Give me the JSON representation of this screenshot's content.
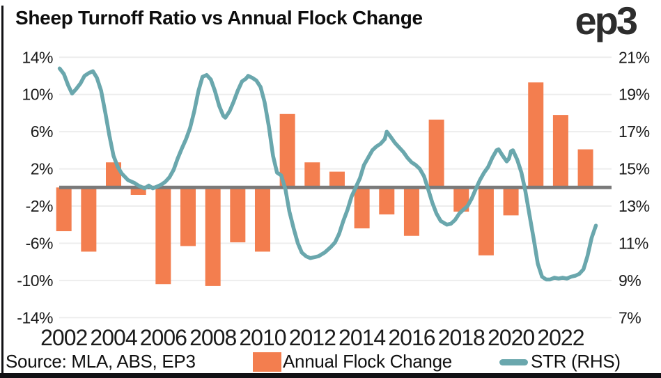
{
  "header": {
    "title": "Sheep Turnoff Ratio vs Annual Flock Change",
    "logo_text": "ep3"
  },
  "source_note": "Source: MLA, ABS, EP3",
  "legend": {
    "items": [
      {
        "label": "Annual Flock Change",
        "marker": "bar-swatch",
        "color": "#F37E4F"
      },
      {
        "label": "STR (RHS)",
        "marker": "line-swatch",
        "color": "#6AA7AD"
      }
    ]
  },
  "colors": {
    "bar": "#F37E4F",
    "line": "#6AA7AD",
    "zero_line": "#7A7A7A",
    "gridline": "#EDEDED",
    "axis_text": "#1B1B1B",
    "background": "#FFFFFF",
    "bottom_bar": "#111114"
  },
  "chart_data": {
    "type": "combo",
    "title": "Sheep Turnoff Ratio vs Annual Flock Change",
    "grid": true,
    "legend_position": "bottom",
    "baseline_left_value": 0,
    "x_axis": {
      "tick_labels": [
        "2002",
        "2004",
        "2006",
        "2008",
        "2010",
        "2012",
        "2014",
        "2016",
        "2018",
        "2020",
        "2022"
      ],
      "tick_years": [
        2002,
        2004,
        2006,
        2008,
        2010,
        2012,
        2014,
        2016,
        2018,
        2020,
        2022
      ],
      "range": [
        2001.7,
        2023.7
      ]
    },
    "left_axis": {
      "tick_labels": [
        "14%",
        "10%",
        "6%",
        "2%",
        "-2%",
        "-6%",
        "-10%",
        "-14%"
      ],
      "tick_values": [
        14,
        10,
        6,
        2,
        -2,
        -6,
        -10,
        -14
      ],
      "range": [
        -14,
        14
      ]
    },
    "right_axis": {
      "tick_labels": [
        "21%",
        "19%",
        "17%",
        "15%",
        "13%",
        "11%",
        "9%",
        "7%"
      ],
      "tick_values": [
        21,
        19,
        17,
        15,
        13,
        11,
        9,
        7
      ],
      "range": [
        7,
        21
      ]
    },
    "series": [
      {
        "name": "Annual Flock Change",
        "type": "bar",
        "axis": "left",
        "color": "#F37E4F",
        "years": [
          2002,
          2003,
          2004,
          2005,
          2006,
          2007,
          2008,
          2009,
          2010,
          2011,
          2012,
          2013,
          2014,
          2015,
          2016,
          2017,
          2018,
          2019,
          2020,
          2021,
          2022,
          2023
        ],
        "values": [
          -4.7,
          -6.9,
          2.7,
          -0.8,
          -10.4,
          -6.3,
          -10.6,
          -5.9,
          -6.9,
          7.9,
          2.7,
          1.7,
          -4.4,
          -2.9,
          -5.2,
          7.3,
          -2.6,
          -7.3,
          -3.0,
          11.3,
          7.8,
          4.1
        ]
      },
      {
        "name": "STR (RHS)",
        "type": "line",
        "axis": "right",
        "color": "#6AA7AD",
        "points": [
          [
            2001.83,
            20.4
          ],
          [
            2002.0,
            20.1
          ],
          [
            2002.17,
            19.5
          ],
          [
            2002.33,
            19.05
          ],
          [
            2002.5,
            19.3
          ],
          [
            2002.67,
            19.6
          ],
          [
            2002.83,
            20.0
          ],
          [
            2003.0,
            20.15
          ],
          [
            2003.17,
            20.25
          ],
          [
            2003.33,
            19.9
          ],
          [
            2003.5,
            19.2
          ],
          [
            2003.67,
            18.0
          ],
          [
            2003.83,
            16.8
          ],
          [
            2004.0,
            15.7
          ],
          [
            2004.17,
            15.1
          ],
          [
            2004.33,
            14.75
          ],
          [
            2004.58,
            14.4
          ],
          [
            2004.83,
            14.25
          ],
          [
            2005.0,
            14.1
          ],
          [
            2005.25,
            13.95
          ],
          [
            2005.42,
            14.1
          ],
          [
            2005.58,
            13.95
          ],
          [
            2005.75,
            14.05
          ],
          [
            2005.92,
            14.15
          ],
          [
            2006.08,
            14.3
          ],
          [
            2006.25,
            14.55
          ],
          [
            2006.42,
            14.95
          ],
          [
            2006.58,
            15.55
          ],
          [
            2006.75,
            16.1
          ],
          [
            2006.92,
            16.6
          ],
          [
            2007.08,
            17.2
          ],
          [
            2007.25,
            18.1
          ],
          [
            2007.42,
            19.2
          ],
          [
            2007.58,
            19.95
          ],
          [
            2007.75,
            20.05
          ],
          [
            2007.92,
            19.8
          ],
          [
            2008.08,
            19.2
          ],
          [
            2008.25,
            18.4
          ],
          [
            2008.42,
            17.85
          ],
          [
            2008.5,
            17.75
          ],
          [
            2008.67,
            18.1
          ],
          [
            2008.83,
            18.6
          ],
          [
            2009.0,
            19.2
          ],
          [
            2009.17,
            19.7
          ],
          [
            2009.33,
            19.85
          ],
          [
            2009.42,
            20.0
          ],
          [
            2009.58,
            19.9
          ],
          [
            2009.75,
            19.75
          ],
          [
            2009.92,
            19.4
          ],
          [
            2010.08,
            18.6
          ],
          [
            2010.25,
            17.3
          ],
          [
            2010.42,
            15.7
          ],
          [
            2010.58,
            14.8
          ],
          [
            2010.75,
            14.65
          ],
          [
            2010.92,
            13.9
          ],
          [
            2011.08,
            12.7
          ],
          [
            2011.25,
            11.8
          ],
          [
            2011.42,
            11.0
          ],
          [
            2011.58,
            10.5
          ],
          [
            2011.75,
            10.3
          ],
          [
            2011.92,
            10.2
          ],
          [
            2012.08,
            10.25
          ],
          [
            2012.25,
            10.3
          ],
          [
            2012.5,
            10.5
          ],
          [
            2012.75,
            10.8
          ],
          [
            2012.92,
            11.05
          ],
          [
            2013.08,
            11.5
          ],
          [
            2013.25,
            12.2
          ],
          [
            2013.42,
            12.8
          ],
          [
            2013.58,
            13.5
          ],
          [
            2013.75,
            14.0
          ],
          [
            2013.92,
            14.5
          ],
          [
            2014.08,
            15.2
          ],
          [
            2014.25,
            15.6
          ],
          [
            2014.42,
            16.0
          ],
          [
            2014.58,
            16.2
          ],
          [
            2014.75,
            16.35
          ],
          [
            2014.92,
            16.6
          ],
          [
            2015.0,
            17.0
          ],
          [
            2015.17,
            16.7
          ],
          [
            2015.33,
            16.4
          ],
          [
            2015.5,
            16.15
          ],
          [
            2015.67,
            15.9
          ],
          [
            2015.83,
            15.6
          ],
          [
            2016.0,
            15.35
          ],
          [
            2016.17,
            15.2
          ],
          [
            2016.33,
            15.0
          ],
          [
            2016.5,
            14.6
          ],
          [
            2016.67,
            13.9
          ],
          [
            2016.83,
            13.2
          ],
          [
            2017.0,
            12.6
          ],
          [
            2017.17,
            12.2
          ],
          [
            2017.42,
            12.0
          ],
          [
            2017.58,
            12.05
          ],
          [
            2017.75,
            12.25
          ],
          [
            2017.92,
            12.6
          ],
          [
            2018.08,
            12.8
          ],
          [
            2018.25,
            13.0
          ],
          [
            2018.42,
            13.4
          ],
          [
            2018.58,
            13.9
          ],
          [
            2018.75,
            14.4
          ],
          [
            2018.92,
            14.8
          ],
          [
            2019.08,
            15.1
          ],
          [
            2019.25,
            15.6
          ],
          [
            2019.42,
            16.0
          ],
          [
            2019.5,
            16.05
          ],
          [
            2019.67,
            15.7
          ],
          [
            2019.83,
            15.4
          ],
          [
            2019.92,
            15.55
          ],
          [
            2020.0,
            15.95
          ],
          [
            2020.08,
            16.0
          ],
          [
            2020.25,
            15.5
          ],
          [
            2020.42,
            14.8
          ],
          [
            2020.58,
            13.8
          ],
          [
            2020.75,
            12.5
          ],
          [
            2020.92,
            11.2
          ],
          [
            2021.08,
            9.9
          ],
          [
            2021.25,
            9.2
          ],
          [
            2021.42,
            9.05
          ],
          [
            2021.58,
            9.05
          ],
          [
            2021.75,
            9.15
          ],
          [
            2021.92,
            9.1
          ],
          [
            2022.08,
            9.15
          ],
          [
            2022.25,
            9.1
          ],
          [
            2022.42,
            9.2
          ],
          [
            2022.58,
            9.25
          ],
          [
            2022.75,
            9.35
          ],
          [
            2022.92,
            9.6
          ],
          [
            2023.08,
            10.3
          ],
          [
            2023.25,
            11.3
          ],
          [
            2023.42,
            11.95
          ]
        ]
      }
    ]
  }
}
